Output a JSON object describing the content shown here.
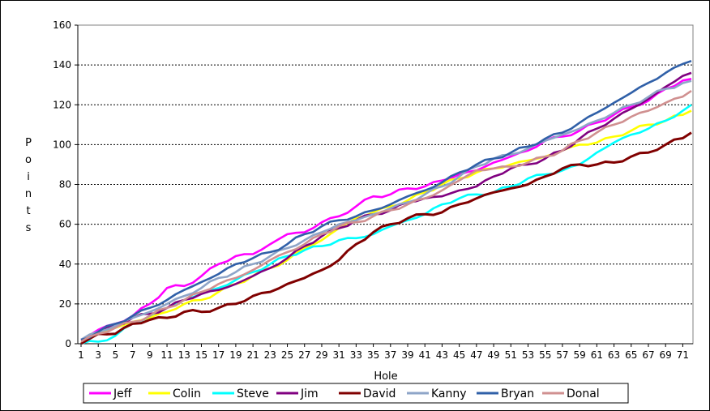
{
  "chart_data": {
    "type": "line",
    "xlabel": "Hole",
    "ylabel": "Points",
    "ylim": [
      0,
      160
    ],
    "yticks": [
      0,
      20,
      40,
      60,
      80,
      100,
      120,
      140,
      160
    ],
    "xlim": [
      1,
      72
    ],
    "xtick_labels": [
      "1",
      "3",
      "5",
      "7",
      "9",
      "11",
      "13",
      "15",
      "17",
      "19",
      "21",
      "23",
      "25",
      "27",
      "29",
      "31",
      "33",
      "35",
      "37",
      "39",
      "41",
      "43",
      "45",
      "47",
      "49",
      "51",
      "53",
      "55",
      "57",
      "59",
      "61",
      "63",
      "65",
      "67",
      "69",
      "71"
    ],
    "grid": "horizontal",
    "legend_position": "bottom",
    "series": [
      {
        "name": "Jeff",
        "color": "#ff00ff",
        "anchors": [
          [
            1,
            2
          ],
          [
            3,
            7
          ],
          [
            5,
            10
          ],
          [
            7,
            14
          ],
          [
            9,
            20
          ],
          [
            11,
            28
          ],
          [
            13,
            29
          ],
          [
            15,
            34
          ],
          [
            17,
            40
          ],
          [
            19,
            44
          ],
          [
            21,
            45
          ],
          [
            23,
            50
          ],
          [
            25,
            55
          ],
          [
            27,
            56
          ],
          [
            29,
            61
          ],
          [
            31,
            64
          ],
          [
            33,
            69
          ],
          [
            35,
            74
          ],
          [
            37,
            75
          ],
          [
            39,
            78
          ],
          [
            41,
            79
          ],
          [
            43,
            82
          ],
          [
            45,
            85
          ],
          [
            47,
            87
          ],
          [
            49,
            91
          ],
          [
            51,
            94
          ],
          [
            53,
            97
          ],
          [
            55,
            102
          ],
          [
            57,
            104
          ],
          [
            59,
            107
          ],
          [
            61,
            111
          ],
          [
            63,
            115
          ],
          [
            65,
            119
          ],
          [
            67,
            122
          ],
          [
            69,
            128
          ],
          [
            72,
            133
          ]
        ]
      },
      {
        "name": "Colin",
        "color": "#ffff00",
        "anchors": [
          [
            1,
            1
          ],
          [
            3,
            5
          ],
          [
            5,
            8
          ],
          [
            7,
            11
          ],
          [
            9,
            13
          ],
          [
            11,
            16
          ],
          [
            13,
            20
          ],
          [
            15,
            22
          ],
          [
            17,
            26
          ],
          [
            19,
            30
          ],
          [
            21,
            34
          ],
          [
            23,
            38
          ],
          [
            25,
            42
          ],
          [
            27,
            48
          ],
          [
            29,
            52
          ],
          [
            31,
            58
          ],
          [
            33,
            63
          ],
          [
            35,
            66
          ],
          [
            37,
            69
          ],
          [
            39,
            72
          ],
          [
            41,
            76
          ],
          [
            43,
            80
          ],
          [
            45,
            83
          ],
          [
            47,
            86
          ],
          [
            49,
            88
          ],
          [
            51,
            90
          ],
          [
            53,
            92
          ],
          [
            55,
            94
          ],
          [
            57,
            97
          ],
          [
            59,
            100
          ],
          [
            61,
            101
          ],
          [
            63,
            104
          ],
          [
            65,
            107
          ],
          [
            67,
            110
          ],
          [
            69,
            112
          ],
          [
            72,
            117
          ]
        ]
      },
      {
        "name": "Steve",
        "color": "#00ffff",
        "anchors": [
          [
            1,
            0
          ],
          [
            3,
            1
          ],
          [
            5,
            4
          ],
          [
            7,
            10
          ],
          [
            9,
            14
          ],
          [
            11,
            18
          ],
          [
            13,
            22
          ],
          [
            15,
            25
          ],
          [
            17,
            28
          ],
          [
            19,
            32
          ],
          [
            21,
            36
          ],
          [
            23,
            40
          ],
          [
            25,
            44
          ],
          [
            27,
            47
          ],
          [
            29,
            49
          ],
          [
            31,
            52
          ],
          [
            33,
            53
          ],
          [
            35,
            55
          ],
          [
            37,
            59
          ],
          [
            39,
            62
          ],
          [
            41,
            65
          ],
          [
            43,
            70
          ],
          [
            45,
            73
          ],
          [
            47,
            75
          ],
          [
            49,
            76
          ],
          [
            51,
            79
          ],
          [
            53,
            83
          ],
          [
            55,
            85
          ],
          [
            57,
            87
          ],
          [
            59,
            90
          ],
          [
            61,
            96
          ],
          [
            63,
            101
          ],
          [
            65,
            105
          ],
          [
            67,
            108
          ],
          [
            69,
            112
          ],
          [
            72,
            120
          ]
        ]
      },
      {
        "name": "Jim",
        "color": "#800080",
        "anchors": [
          [
            1,
            2
          ],
          [
            3,
            6
          ],
          [
            5,
            9
          ],
          [
            7,
            13
          ],
          [
            9,
            15
          ],
          [
            11,
            18
          ],
          [
            13,
            22
          ],
          [
            15,
            25
          ],
          [
            17,
            27
          ],
          [
            19,
            30
          ],
          [
            21,
            34
          ],
          [
            23,
            38
          ],
          [
            25,
            43
          ],
          [
            27,
            49
          ],
          [
            29,
            54
          ],
          [
            31,
            58
          ],
          [
            33,
            62
          ],
          [
            35,
            65
          ],
          [
            37,
            67
          ],
          [
            39,
            71
          ],
          [
            41,
            73
          ],
          [
            43,
            74
          ],
          [
            45,
            77
          ],
          [
            47,
            79
          ],
          [
            49,
            84
          ],
          [
            51,
            88
          ],
          [
            53,
            90
          ],
          [
            55,
            93
          ],
          [
            57,
            97
          ],
          [
            59,
            103
          ],
          [
            61,
            108
          ],
          [
            63,
            113
          ],
          [
            65,
            118
          ],
          [
            67,
            123
          ],
          [
            69,
            129
          ],
          [
            72,
            136
          ]
        ]
      },
      {
        "name": "David",
        "color": "#800000",
        "anchors": [
          [
            1,
            0
          ],
          [
            3,
            5
          ],
          [
            5,
            5
          ],
          [
            7,
            10
          ],
          [
            9,
            12
          ],
          [
            11,
            13
          ],
          [
            13,
            16
          ],
          [
            15,
            16
          ],
          [
            17,
            18
          ],
          [
            19,
            20
          ],
          [
            21,
            24
          ],
          [
            23,
            26
          ],
          [
            25,
            30
          ],
          [
            27,
            33
          ],
          [
            29,
            37
          ],
          [
            31,
            42
          ],
          [
            33,
            50
          ],
          [
            35,
            56
          ],
          [
            37,
            60
          ],
          [
            39,
            63
          ],
          [
            41,
            65
          ],
          [
            43,
            66
          ],
          [
            45,
            70
          ],
          [
            47,
            73
          ],
          [
            49,
            76
          ],
          [
            51,
            78
          ],
          [
            53,
            80
          ],
          [
            55,
            84
          ],
          [
            57,
            88
          ],
          [
            59,
            90
          ],
          [
            61,
            90
          ],
          [
            63,
            91
          ],
          [
            65,
            94
          ],
          [
            67,
            96
          ],
          [
            69,
            100
          ],
          [
            72,
            106
          ]
        ]
      },
      {
        "name": "Kanny",
        "color": "#8ea5c8",
        "anchors": [
          [
            1,
            2
          ],
          [
            3,
            6
          ],
          [
            5,
            9
          ],
          [
            7,
            13
          ],
          [
            9,
            16
          ],
          [
            11,
            20
          ],
          [
            13,
            24
          ],
          [
            15,
            28
          ],
          [
            17,
            33
          ],
          [
            19,
            36
          ],
          [
            21,
            40
          ],
          [
            23,
            44
          ],
          [
            25,
            48
          ],
          [
            27,
            52
          ],
          [
            29,
            56
          ],
          [
            31,
            60
          ],
          [
            33,
            62
          ],
          [
            35,
            65
          ],
          [
            37,
            68
          ],
          [
            39,
            71
          ],
          [
            41,
            75
          ],
          [
            43,
            79
          ],
          [
            45,
            84
          ],
          [
            47,
            89
          ],
          [
            49,
            93
          ],
          [
            51,
            95
          ],
          [
            53,
            98
          ],
          [
            55,
            102
          ],
          [
            57,
            105
          ],
          [
            59,
            108
          ],
          [
            61,
            112
          ],
          [
            63,
            116
          ],
          [
            65,
            120
          ],
          [
            67,
            124
          ],
          [
            69,
            128
          ],
          [
            72,
            132
          ]
        ]
      },
      {
        "name": "Bryan",
        "color": "#3060a8",
        "anchors": [
          [
            1,
            2
          ],
          [
            3,
            6
          ],
          [
            5,
            10
          ],
          [
            7,
            14
          ],
          [
            9,
            18
          ],
          [
            11,
            22
          ],
          [
            13,
            27
          ],
          [
            15,
            31
          ],
          [
            17,
            35
          ],
          [
            19,
            40
          ],
          [
            21,
            43
          ],
          [
            23,
            46
          ],
          [
            25,
            50
          ],
          [
            27,
            55
          ],
          [
            29,
            59
          ],
          [
            31,
            62
          ],
          [
            33,
            64
          ],
          [
            35,
            67
          ],
          [
            37,
            70
          ],
          [
            39,
            74
          ],
          [
            41,
            77
          ],
          [
            43,
            81
          ],
          [
            45,
            86
          ],
          [
            47,
            90
          ],
          [
            49,
            93
          ],
          [
            51,
            96
          ],
          [
            53,
            99
          ],
          [
            55,
            103
          ],
          [
            57,
            106
          ],
          [
            59,
            111
          ],
          [
            61,
            116
          ],
          [
            63,
            121
          ],
          [
            65,
            126
          ],
          [
            67,
            131
          ],
          [
            69,
            136
          ],
          [
            72,
            142
          ]
        ]
      },
      {
        "name": "Donal",
        "color": "#d09090",
        "anchors": [
          [
            1,
            1
          ],
          [
            3,
            5
          ],
          [
            5,
            8
          ],
          [
            7,
            11
          ],
          [
            9,
            14
          ],
          [
            11,
            18
          ],
          [
            13,
            22
          ],
          [
            15,
            26
          ],
          [
            17,
            30
          ],
          [
            19,
            33
          ],
          [
            21,
            37
          ],
          [
            23,
            42
          ],
          [
            25,
            46
          ],
          [
            27,
            50
          ],
          [
            29,
            55
          ],
          [
            31,
            59
          ],
          [
            33,
            61
          ],
          [
            35,
            64
          ],
          [
            37,
            67
          ],
          [
            39,
            70
          ],
          [
            41,
            73
          ],
          [
            43,
            77
          ],
          [
            45,
            82
          ],
          [
            47,
            87
          ],
          [
            49,
            88
          ],
          [
            51,
            89
          ],
          [
            53,
            91
          ],
          [
            55,
            94
          ],
          [
            57,
            97
          ],
          [
            59,
            102
          ],
          [
            61,
            106
          ],
          [
            63,
            110
          ],
          [
            65,
            114
          ],
          [
            67,
            117
          ],
          [
            69,
            121
          ],
          [
            72,
            127
          ]
        ]
      }
    ]
  }
}
